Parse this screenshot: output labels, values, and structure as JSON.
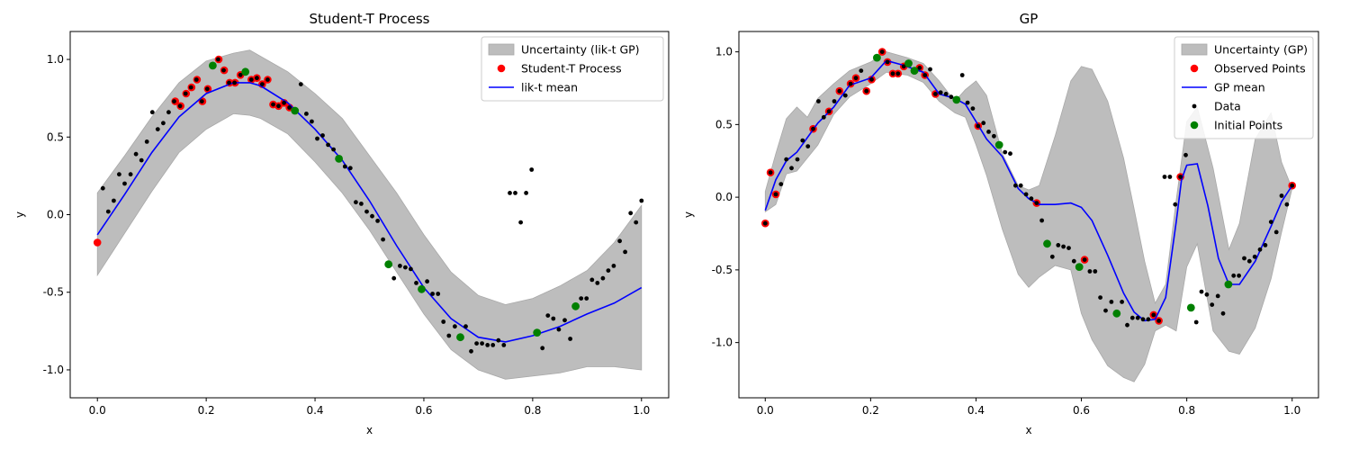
{
  "chart_data": [
    {
      "type": "scatter",
      "title": "Student-T Process",
      "xlabel": "x",
      "ylabel": "y",
      "xlim": [
        -0.05,
        1.05
      ],
      "ylim": [
        -1.18,
        1.18
      ],
      "xticks": [
        "0.0",
        "0.2",
        "0.4",
        "0.6",
        "0.8",
        "1.0"
      ],
      "yticks": [
        "-1.0",
        "-0.5",
        "0.0",
        "0.5",
        "1.0"
      ],
      "legend_position": "top-right",
      "legend": [
        "Uncertainty (lik-t GP)",
        "Student-T Process",
        "lik-t mean"
      ],
      "colors": {
        "band": "#bdbdbd",
        "observed": "#ff0000",
        "mean": "#0000ff",
        "data": "#000000",
        "initial": "#008000"
      },
      "band_x": [
        0.0,
        0.05,
        0.1,
        0.15,
        0.2,
        0.25,
        0.28,
        0.3,
        0.35,
        0.4,
        0.45,
        0.5,
        0.55,
        0.6,
        0.65,
        0.7,
        0.75,
        0.8,
        0.85,
        0.9,
        0.95,
        1.0
      ],
      "band_upper": [
        0.14,
        0.38,
        0.63,
        0.85,
        0.99,
        1.04,
        1.06,
        1.02,
        0.92,
        0.78,
        0.62,
        0.38,
        0.14,
        -0.13,
        -0.37,
        -0.52,
        -0.58,
        -0.54,
        -0.46,
        -0.36,
        -0.18,
        0.06
      ],
      "band_lower": [
        -0.39,
        -0.12,
        0.15,
        0.4,
        0.55,
        0.65,
        0.64,
        0.62,
        0.52,
        0.34,
        0.14,
        -0.1,
        -0.37,
        -0.64,
        -0.87,
        -1.0,
        -1.06,
        -1.04,
        -1.02,
        -0.98,
        -0.98,
        -1.0
      ],
      "mean_x": [
        0.0,
        0.05,
        0.1,
        0.15,
        0.2,
        0.25,
        0.28,
        0.3,
        0.35,
        0.4,
        0.45,
        0.5,
        0.55,
        0.6,
        0.65,
        0.7,
        0.75,
        0.8,
        0.85,
        0.9,
        0.95,
        1.0
      ],
      "mean_y": [
        -0.13,
        0.13,
        0.4,
        0.63,
        0.78,
        0.85,
        0.85,
        0.83,
        0.72,
        0.55,
        0.35,
        0.09,
        -0.2,
        -0.47,
        -0.67,
        -0.79,
        -0.82,
        -0.78,
        -0.72,
        -0.64,
        -0.57,
        -0.47
      ],
      "observed": [
        [
          0.0,
          -0.18
        ],
        [
          0.143,
          0.73
        ],
        [
          0.153,
          0.7
        ],
        [
          0.163,
          0.78
        ],
        [
          0.173,
          0.82
        ],
        [
          0.183,
          0.87
        ],
        [
          0.193,
          0.73
        ],
        [
          0.203,
          0.81
        ],
        [
          0.223,
          1.0
        ],
        [
          0.233,
          0.93
        ],
        [
          0.243,
          0.85
        ],
        [
          0.253,
          0.85
        ],
        [
          0.263,
          0.9
        ],
        [
          0.283,
          0.87
        ],
        [
          0.293,
          0.88
        ],
        [
          0.303,
          0.84
        ],
        [
          0.313,
          0.87
        ],
        [
          0.323,
          0.71
        ],
        [
          0.333,
          0.7
        ],
        [
          0.343,
          0.72
        ],
        [
          0.353,
          0.69
        ]
      ],
      "initial": [
        [
          0.212,
          0.96
        ],
        [
          0.272,
          0.92
        ],
        [
          0.363,
          0.67
        ],
        [
          0.444,
          0.36
        ],
        [
          0.535,
          -0.32
        ],
        [
          0.596,
          -0.48
        ],
        [
          0.667,
          -0.79
        ],
        [
          0.808,
          -0.76
        ],
        [
          0.879,
          -0.59
        ]
      ],
      "data": [
        [
          0.01,
          0.17
        ],
        [
          0.02,
          0.02
        ],
        [
          0.03,
          0.09
        ],
        [
          0.04,
          0.26
        ],
        [
          0.05,
          0.2
        ],
        [
          0.061,
          0.26
        ],
        [
          0.071,
          0.39
        ],
        [
          0.081,
          0.35
        ],
        [
          0.091,
          0.47
        ],
        [
          0.101,
          0.66
        ],
        [
          0.111,
          0.55
        ],
        [
          0.121,
          0.59
        ],
        [
          0.131,
          0.66
        ],
        [
          0.141,
          0.73
        ],
        [
          0.152,
          0.7
        ],
        [
          0.162,
          0.78
        ],
        [
          0.172,
          0.82
        ],
        [
          0.182,
          0.87
        ],
        [
          0.192,
          0.73
        ],
        [
          0.202,
          0.81
        ],
        [
          0.222,
          1.0
        ],
        [
          0.232,
          0.93
        ],
        [
          0.242,
          0.85
        ],
        [
          0.252,
          0.85
        ],
        [
          0.263,
          0.9
        ],
        [
          0.283,
          0.87
        ],
        [
          0.293,
          0.88
        ],
        [
          0.303,
          0.84
        ],
        [
          0.313,
          0.87
        ],
        [
          0.323,
          0.71
        ],
        [
          0.333,
          0.7
        ],
        [
          0.343,
          0.72
        ],
        [
          0.353,
          0.69
        ],
        [
          0.374,
          0.84
        ],
        [
          0.384,
          0.65
        ],
        [
          0.394,
          0.6
        ],
        [
          0.404,
          0.49
        ],
        [
          0.414,
          0.51
        ],
        [
          0.424,
          0.45
        ],
        [
          0.434,
          0.42
        ],
        [
          0.455,
          0.31
        ],
        [
          0.465,
          0.3
        ],
        [
          0.475,
          0.08
        ],
        [
          0.485,
          0.07
        ],
        [
          0.495,
          0.02
        ],
        [
          0.505,
          -0.01
        ],
        [
          0.515,
          -0.04
        ],
        [
          0.525,
          -0.16
        ],
        [
          0.545,
          -0.41
        ],
        [
          0.556,
          -0.33
        ],
        [
          0.566,
          -0.34
        ],
        [
          0.576,
          -0.35
        ],
        [
          0.586,
          -0.44
        ],
        [
          0.606,
          -0.43
        ],
        [
          0.616,
          -0.51
        ],
        [
          0.626,
          -0.51
        ],
        [
          0.636,
          -0.69
        ],
        [
          0.646,
          -0.78
        ],
        [
          0.657,
          -0.72
        ],
        [
          0.677,
          -0.72
        ],
        [
          0.687,
          -0.88
        ],
        [
          0.697,
          -0.83
        ],
        [
          0.707,
          -0.83
        ],
        [
          0.717,
          -0.84
        ],
        [
          0.727,
          -0.84
        ],
        [
          0.737,
          -0.81
        ],
        [
          0.747,
          -0.84
        ],
        [
          0.758,
          0.14
        ],
        [
          0.768,
          0.14
        ],
        [
          0.778,
          -0.05
        ],
        [
          0.788,
          0.14
        ],
        [
          0.798,
          0.29
        ],
        [
          0.818,
          -0.86
        ],
        [
          0.828,
          -0.65
        ],
        [
          0.838,
          -0.67
        ],
        [
          0.848,
          -0.74
        ],
        [
          0.859,
          -0.68
        ],
        [
          0.869,
          -0.8
        ],
        [
          0.889,
          -0.54
        ],
        [
          0.899,
          -0.54
        ],
        [
          0.909,
          -0.42
        ],
        [
          0.919,
          -0.44
        ],
        [
          0.929,
          -0.41
        ],
        [
          0.939,
          -0.36
        ],
        [
          0.949,
          -0.33
        ],
        [
          0.96,
          -0.17
        ],
        [
          0.97,
          -0.24
        ],
        [
          0.98,
          0.01
        ],
        [
          0.99,
          -0.05
        ],
        [
          1.0,
          0.09
        ]
      ]
    },
    {
      "type": "scatter",
      "title": "GP",
      "xlabel": "x",
      "ylabel": "y",
      "xlim": [
        -0.05,
        1.05
      ],
      "ylim": [
        -1.38,
        1.14
      ],
      "xticks": [
        "0.0",
        "0.2",
        "0.4",
        "0.6",
        "0.8",
        "1.0"
      ],
      "yticks": [
        "-1.0",
        "-0.5",
        "0.0",
        "0.5",
        "1.0"
      ],
      "legend_position": "top-right",
      "legend": [
        "Uncertainty (GP)",
        "Observed Points",
        "GP mean",
        "Data",
        "Initial Points"
      ],
      "colors": {
        "band": "#bdbdbd",
        "observed": "#ff0000",
        "mean": "#0000ff",
        "data": "#000000",
        "initial": "#008000"
      },
      "band_x": [
        0.0,
        0.02,
        0.04,
        0.06,
        0.08,
        0.1,
        0.13,
        0.16,
        0.2,
        0.23,
        0.27,
        0.3,
        0.33,
        0.36,
        0.38,
        0.4,
        0.42,
        0.45,
        0.48,
        0.5,
        0.52,
        0.55,
        0.58,
        0.6,
        0.62,
        0.65,
        0.68,
        0.7,
        0.72,
        0.74,
        0.76,
        0.78,
        0.8,
        0.82,
        0.85,
        0.88,
        0.9,
        0.93,
        0.96,
        0.98,
        1.0
      ],
      "band_upper": [
        0.04,
        0.3,
        0.54,
        0.62,
        0.55,
        0.68,
        0.78,
        0.87,
        0.93,
        1.0,
        0.96,
        0.92,
        0.8,
        0.66,
        0.74,
        0.8,
        0.7,
        0.3,
        0.08,
        0.05,
        0.08,
        0.42,
        0.8,
        0.9,
        0.88,
        0.66,
        0.27,
        -0.08,
        -0.44,
        -0.73,
        -0.6,
        -0.02,
        0.52,
        0.62,
        0.2,
        -0.36,
        -0.18,
        0.4,
        0.58,
        0.24,
        0.06
      ],
      "band_lower": [
        -0.1,
        -0.05,
        0.16,
        0.18,
        0.27,
        0.36,
        0.57,
        0.69,
        0.78,
        0.86,
        0.84,
        0.79,
        0.66,
        0.58,
        0.55,
        0.36,
        0.15,
        -0.22,
        -0.53,
        -0.62,
        -0.55,
        -0.47,
        -0.5,
        -0.8,
        -0.98,
        -1.16,
        -1.24,
        -1.27,
        -1.15,
        -0.92,
        -0.88,
        -0.92,
        -0.48,
        -0.32,
        -0.92,
        -1.06,
        -1.08,
        -0.9,
        -0.56,
        -0.24,
        0.06
      ],
      "mean_x": [
        0.0,
        0.02,
        0.04,
        0.06,
        0.08,
        0.1,
        0.13,
        0.16,
        0.2,
        0.23,
        0.26,
        0.3,
        0.33,
        0.36,
        0.38,
        0.4,
        0.42,
        0.45,
        0.48,
        0.5,
        0.52,
        0.55,
        0.58,
        0.6,
        0.62,
        0.65,
        0.68,
        0.7,
        0.72,
        0.74,
        0.76,
        0.78,
        0.79,
        0.8,
        0.82,
        0.84,
        0.86,
        0.88,
        0.9,
        0.93,
        0.96,
        0.98,
        1.0
      ],
      "mean_y": [
        -0.09,
        0.12,
        0.25,
        0.31,
        0.41,
        0.51,
        0.62,
        0.77,
        0.82,
        0.94,
        0.91,
        0.86,
        0.71,
        0.68,
        0.64,
        0.52,
        0.4,
        0.28,
        0.06,
        -0.01,
        -0.05,
        -0.05,
        -0.04,
        -0.07,
        -0.16,
        -0.4,
        -0.66,
        -0.79,
        -0.85,
        -0.84,
        -0.69,
        -0.17,
        0.12,
        0.22,
        0.23,
        -0.06,
        -0.42,
        -0.6,
        -0.6,
        -0.44,
        -0.2,
        -0.03,
        0.08
      ],
      "observed": [
        [
          0.0,
          -0.18
        ],
        [
          0.01,
          0.17
        ],
        [
          0.02,
          0.02
        ],
        [
          0.091,
          0.47
        ],
        [
          0.121,
          0.59
        ],
        [
          0.141,
          0.73
        ],
        [
          0.162,
          0.78
        ],
        [
          0.172,
          0.82
        ],
        [
          0.192,
          0.73
        ],
        [
          0.202,
          0.81
        ],
        [
          0.222,
          1.0
        ],
        [
          0.232,
          0.93
        ],
        [
          0.242,
          0.85
        ],
        [
          0.252,
          0.85
        ],
        [
          0.263,
          0.9
        ],
        [
          0.293,
          0.89
        ],
        [
          0.303,
          0.84
        ],
        [
          0.323,
          0.71
        ],
        [
          0.404,
          0.49
        ],
        [
          0.515,
          -0.04
        ],
        [
          0.606,
          -0.43
        ],
        [
          0.737,
          -0.81
        ],
        [
          0.747,
          -0.85
        ],
        [
          0.788,
          0.14
        ],
        [
          1.0,
          0.08
        ]
      ],
      "initial": [
        [
          0.212,
          0.96
        ],
        [
          0.272,
          0.92
        ],
        [
          0.283,
          0.87
        ],
        [
          0.363,
          0.67
        ],
        [
          0.444,
          0.36
        ],
        [
          0.535,
          -0.32
        ],
        [
          0.596,
          -0.48
        ],
        [
          0.667,
          -0.8
        ],
        [
          0.808,
          -0.76
        ],
        [
          0.879,
          -0.6
        ]
      ],
      "data": [
        [
          0.0,
          -0.18
        ],
        [
          0.01,
          0.17
        ],
        [
          0.02,
          0.02
        ],
        [
          0.03,
          0.09
        ],
        [
          0.04,
          0.26
        ],
        [
          0.05,
          0.2
        ],
        [
          0.061,
          0.26
        ],
        [
          0.071,
          0.39
        ],
        [
          0.081,
          0.35
        ],
        [
          0.091,
          0.47
        ],
        [
          0.101,
          0.66
        ],
        [
          0.111,
          0.55
        ],
        [
          0.121,
          0.59
        ],
        [
          0.131,
          0.66
        ],
        [
          0.141,
          0.73
        ],
        [
          0.152,
          0.7
        ],
        [
          0.162,
          0.78
        ],
        [
          0.172,
          0.82
        ],
        [
          0.182,
          0.87
        ],
        [
          0.192,
          0.73
        ],
        [
          0.202,
          0.81
        ],
        [
          0.222,
          1.0
        ],
        [
          0.232,
          0.93
        ],
        [
          0.242,
          0.85
        ],
        [
          0.252,
          0.85
        ],
        [
          0.263,
          0.9
        ],
        [
          0.283,
          0.87
        ],
        [
          0.293,
          0.89
        ],
        [
          0.303,
          0.84
        ],
        [
          0.313,
          0.88
        ],
        [
          0.323,
          0.71
        ],
        [
          0.333,
          0.72
        ],
        [
          0.343,
          0.71
        ],
        [
          0.353,
          0.69
        ],
        [
          0.374,
          0.84
        ],
        [
          0.384,
          0.65
        ],
        [
          0.394,
          0.61
        ],
        [
          0.404,
          0.49
        ],
        [
          0.414,
          0.51
        ],
        [
          0.424,
          0.45
        ],
        [
          0.434,
          0.42
        ],
        [
          0.455,
          0.31
        ],
        [
          0.465,
          0.3
        ],
        [
          0.475,
          0.08
        ],
        [
          0.485,
          0.08
        ],
        [
          0.495,
          0.02
        ],
        [
          0.505,
          -0.01
        ],
        [
          0.515,
          -0.04
        ],
        [
          0.525,
          -0.16
        ],
        [
          0.545,
          -0.41
        ],
        [
          0.556,
          -0.33
        ],
        [
          0.566,
          -0.34
        ],
        [
          0.576,
          -0.35
        ],
        [
          0.586,
          -0.44
        ],
        [
          0.606,
          -0.43
        ],
        [
          0.616,
          -0.51
        ],
        [
          0.626,
          -0.51
        ],
        [
          0.636,
          -0.69
        ],
        [
          0.646,
          -0.78
        ],
        [
          0.657,
          -0.72
        ],
        [
          0.677,
          -0.72
        ],
        [
          0.687,
          -0.88
        ],
        [
          0.697,
          -0.83
        ],
        [
          0.707,
          -0.83
        ],
        [
          0.717,
          -0.84
        ],
        [
          0.727,
          -0.84
        ],
        [
          0.737,
          -0.81
        ],
        [
          0.747,
          -0.85
        ],
        [
          0.758,
          0.14
        ],
        [
          0.768,
          0.14
        ],
        [
          0.778,
          -0.05
        ],
        [
          0.788,
          0.14
        ],
        [
          0.798,
          0.29
        ],
        [
          0.818,
          -0.86
        ],
        [
          0.828,
          -0.65
        ],
        [
          0.838,
          -0.67
        ],
        [
          0.848,
          -0.74
        ],
        [
          0.859,
          -0.68
        ],
        [
          0.869,
          -0.8
        ],
        [
          0.889,
          -0.54
        ],
        [
          0.899,
          -0.54
        ],
        [
          0.909,
          -0.42
        ],
        [
          0.919,
          -0.44
        ],
        [
          0.929,
          -0.41
        ],
        [
          0.939,
          -0.36
        ],
        [
          0.949,
          -0.33
        ],
        [
          0.96,
          -0.17
        ],
        [
          0.97,
          -0.24
        ],
        [
          0.98,
          0.01
        ],
        [
          0.99,
          -0.05
        ],
        [
          1.0,
          0.08
        ]
      ]
    }
  ]
}
